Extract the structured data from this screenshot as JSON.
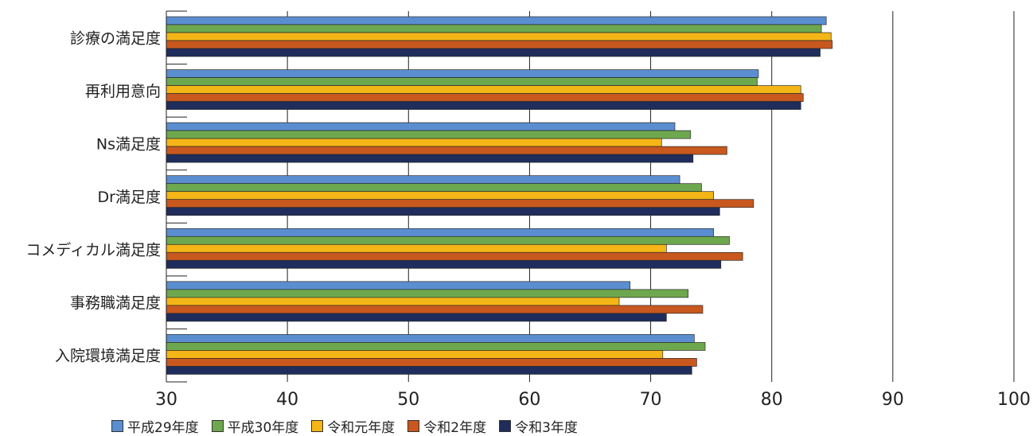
{
  "chart_data": {
    "type": "bar",
    "orientation": "horizontal",
    "title": "",
    "xlabel": "",
    "ylabel": "",
    "xlim": [
      30,
      100
    ],
    "x_ticks": [
      "30",
      "40",
      "50",
      "60",
      "70",
      "80",
      "90",
      "100"
    ],
    "grid": "vertical gridlines",
    "legend_position": "bottom",
    "categories": [
      "診療の満足度",
      "再利用意向",
      "Ns満足度",
      "Dr満足度",
      "コメディカル満足度",
      "事務職満足度",
      "入院環境満足度"
    ],
    "series": [
      {
        "name": "平成29年度",
        "color": "#5b8ed0",
        "values": [
          84.5,
          78.9,
          72.0,
          72.4,
          75.2,
          68.3,
          73.6
        ]
      },
      {
        "name": "平成30年度",
        "color": "#6ea84e",
        "values": [
          84.1,
          78.8,
          73.3,
          74.2,
          76.5,
          73.1,
          74.5
        ]
      },
      {
        "name": "令和元年度",
        "color": "#f4b516",
        "values": [
          84.9,
          82.4,
          70.9,
          75.2,
          71.3,
          67.4,
          71.0
        ]
      },
      {
        "name": "令和2年度",
        "color": "#c8581e",
        "values": [
          85.0,
          82.6,
          76.3,
          78.5,
          77.6,
          74.3,
          73.8
        ]
      },
      {
        "name": "令和3年度",
        "color": "#1e2d5c",
        "values": [
          84.0,
          82.4,
          73.5,
          75.7,
          75.8,
          71.3,
          73.4
        ]
      }
    ]
  }
}
